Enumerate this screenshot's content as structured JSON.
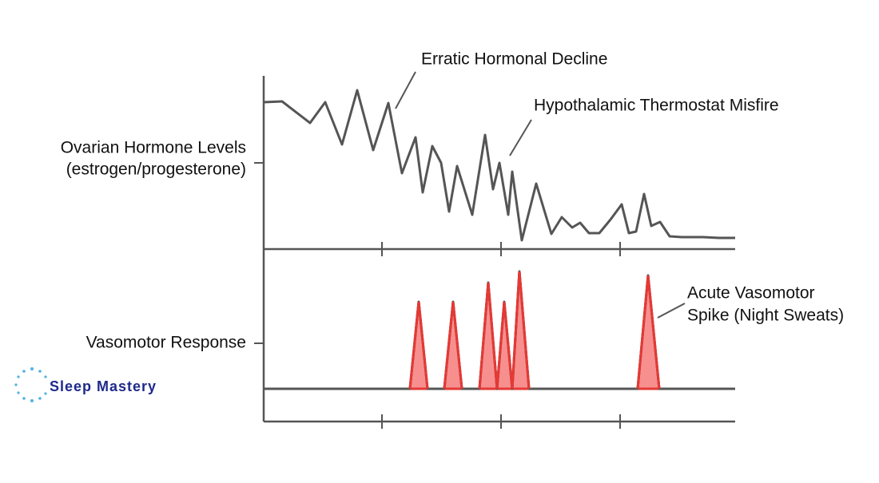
{
  "chart_data": [
    {
      "type": "line",
      "ylabel": [
        "Ovarian Hormone Levels",
        "(estrogen/progesterone)"
      ],
      "xlim": [
        0,
        590
      ],
      "xticks": [
        148,
        297,
        446
      ],
      "ylim": [
        0,
        217
      ],
      "yticks": [
        108
      ],
      "series": [
        {
          "color": "#555555",
          "x": [
            0,
            23,
            58,
            77,
            98,
            117,
            137,
            156,
            173,
            190,
            199,
            211,
            222,
            232,
            242,
            261,
            277,
            287,
            295,
            306,
            311,
            323,
            341,
            360,
            373,
            386,
            396,
            407,
            420,
            434,
            448,
            457,
            466,
            476,
            485,
            496,
            508,
            523,
            550,
            570,
            590
          ],
          "values": [
            184,
            185,
            158,
            184,
            131,
            199,
            124,
            183,
            95,
            140,
            71,
            129,
            108,
            47,
            104,
            43,
            143,
            75,
            108,
            43,
            97,
            11,
            82,
            19,
            40,
            27,
            33,
            20,
            20,
            37,
            56,
            20,
            22,
            69,
            29,
            34,
            16,
            15,
            15,
            14,
            14
          ]
        }
      ],
      "annotations": [
        {
          "text": [
            "Erratic Hormonal Decline"
          ]
        },
        {
          "text": [
            "Hypothalamic Thermostat Misfire"
          ]
        }
      ]
    },
    {
      "type": "line",
      "ylabel": [
        "Vasomotor Response"
      ],
      "xlim": [
        0,
        590
      ],
      "xticks": [
        148,
        297,
        446
      ],
      "ylim": [
        0,
        216
      ],
      "yticks": [
        98
      ],
      "series": [
        {
          "color": "#555555",
          "fill": "#f78f8f",
          "spike_color": "#e53935",
          "x": [
            0,
            183,
            194,
            205,
            226,
            237,
            248,
            270,
            281,
            292,
            301,
            311,
            320,
            332,
            468,
            481,
            495,
            590
          ],
          "values": [
            41,
            41,
            150,
            41,
            41,
            150,
            41,
            41,
            174,
            41,
            150,
            41,
            188,
            41,
            41,
            183,
            41,
            41
          ]
        }
      ],
      "annotations": [
        {
          "text": [
            "Acute Vasomotor",
            "Spike (Night Sweats)"
          ]
        }
      ]
    }
  ],
  "logo": {
    "text": "Sleep Mastery"
  }
}
